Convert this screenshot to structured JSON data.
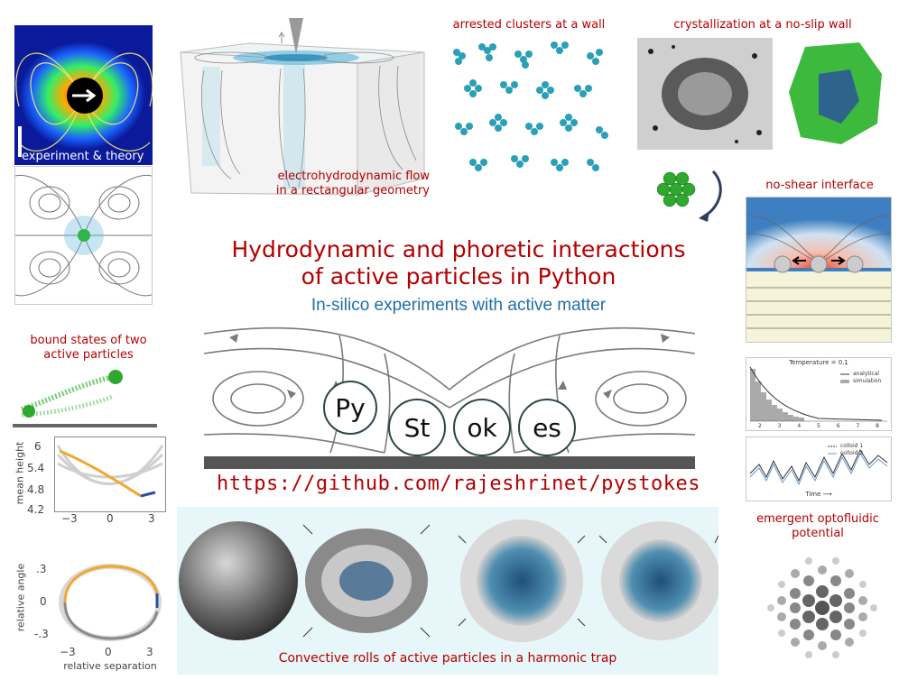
{
  "title_line1": "Hydrodynamic and phoretic interactions",
  "title_line2": "of active particles in Python",
  "subtitle": "In-silico experiments with active matter",
  "url": "https://github.com/rajeshrinet/pystokes",
  "logo_letters": [
    "Py",
    "St",
    "ok",
    "es"
  ],
  "captions": {
    "experiment_theory": "experiment & theory",
    "ehd_flow_line1": "electrohydrodynamic flow",
    "ehd_flow_line2": "in a rectangular geometry",
    "arrested_clusters": "arrested clusters at a wall",
    "crystallization": "crystallization at a no-slip wall",
    "no_shear": "no-shear interface",
    "bound_states_line1": "bound states of two",
    "bound_states_line2": "active particles",
    "emergent_line1": "emergent optofluidic",
    "emergent_line2": "potential",
    "convective_rolls": "Convective rolls of active particles in a harmonic trap"
  },
  "mean_height_plot": {
    "ylabel": "mean height",
    "yticks": [
      "6",
      "5.4",
      "4.8",
      "4.2"
    ],
    "xticks": [
      "−3",
      "0",
      "3"
    ]
  },
  "angle_plot": {
    "ylabel": "relative angle",
    "xlabel": "relative separation",
    "yticks": [
      ".3",
      "0",
      "-.3"
    ],
    "xticks": [
      "−3",
      "0",
      "3"
    ]
  },
  "temperature_plot": {
    "title": "Temperature = 0.1",
    "legend": [
      "analytical",
      "simulation"
    ],
    "xticks": [
      "2",
      "3",
      "4",
      "5",
      "6",
      "7",
      "8"
    ]
  },
  "trajectory_plot": {
    "legend": [
      "colloid 1",
      "colloid 2"
    ],
    "xlabel": "Time ⟶"
  },
  "colors": {
    "accent_red": "#b40000",
    "accent_blue": "#1f6fa8",
    "teal_particles": "#2aa0b8"
  }
}
